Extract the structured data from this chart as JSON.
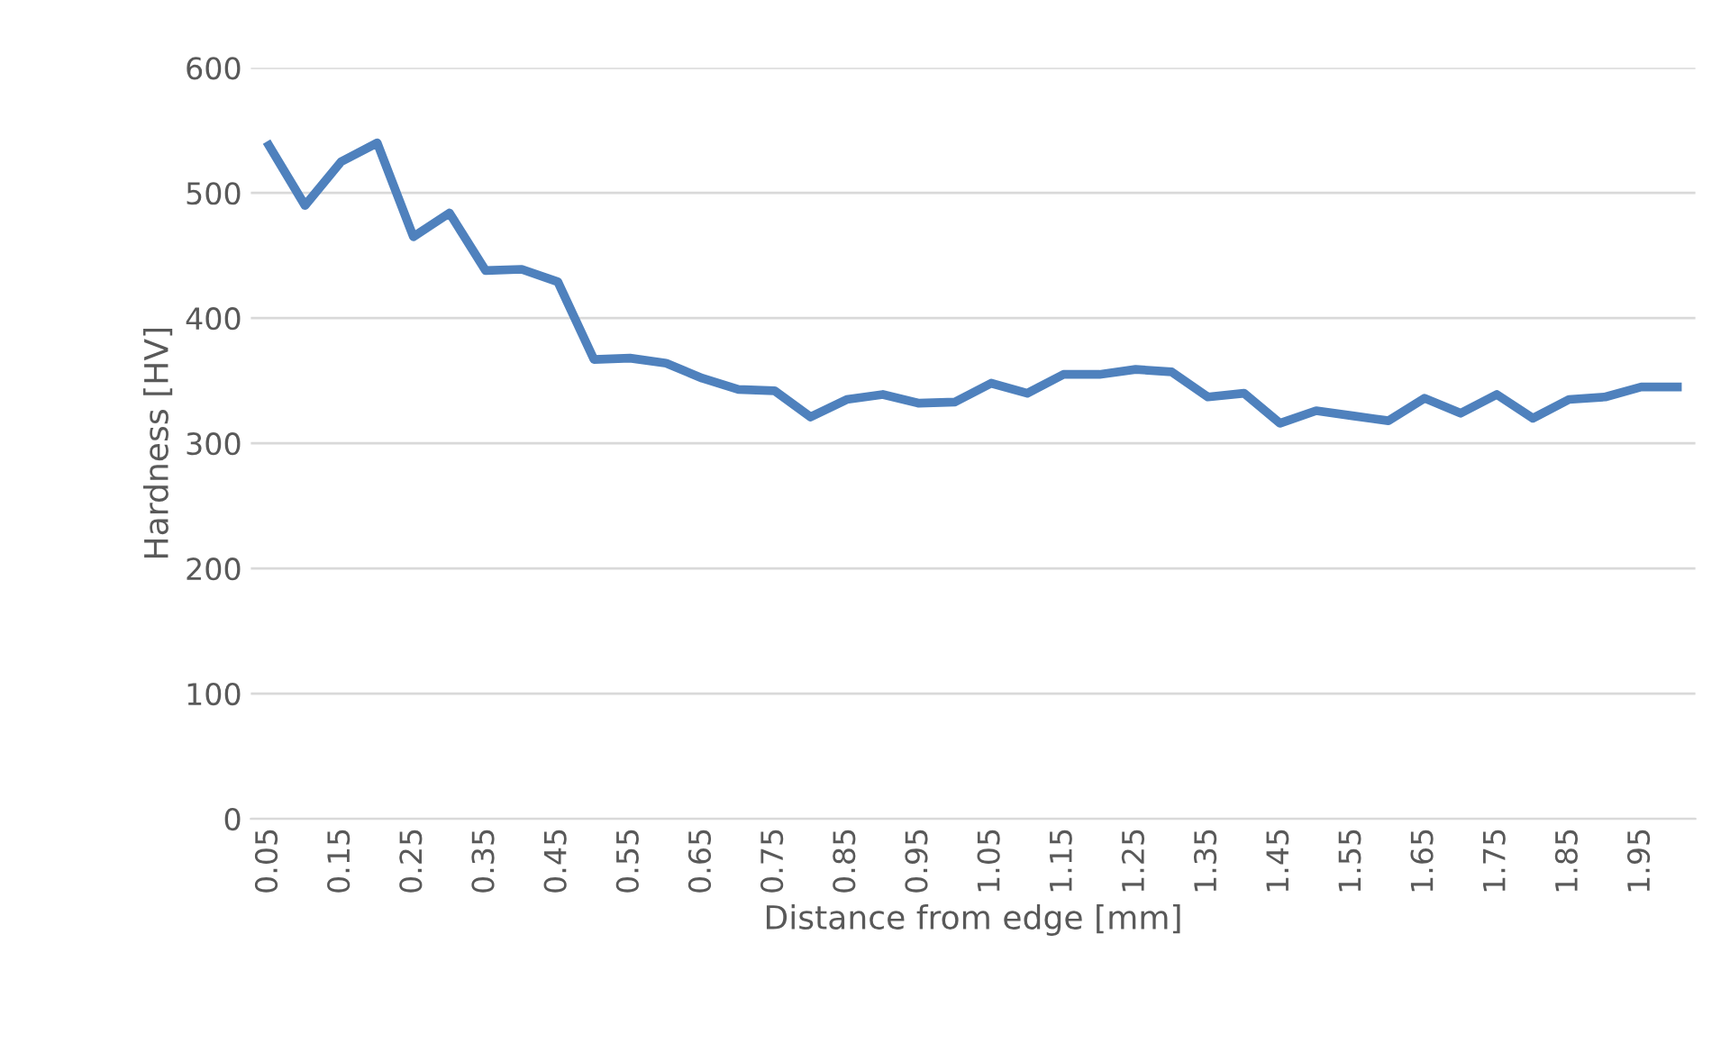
{
  "chart_data": {
    "type": "line",
    "xlabel": "Distance from edge [mm]",
    "ylabel": "Hardness [HV]",
    "categories": [
      "0.05",
      null,
      "0.15",
      null,
      "0.25",
      null,
      "0.35",
      null,
      "0.45",
      null,
      "0.55",
      null,
      "0.65",
      null,
      "0.75",
      null,
      "0.85",
      null,
      "0.95",
      null,
      "1.05",
      null,
      "1.15",
      null,
      "1.25",
      null,
      "1.35",
      null,
      "1.45",
      null,
      "1.55",
      null,
      "1.65",
      null,
      "1.75",
      null,
      "1.85",
      null,
      "1.95",
      null
    ],
    "series": [
      {
        "color": "#4f81bd",
        "values": [
          538,
          490,
          525,
          540,
          465,
          484,
          438,
          439,
          429,
          367,
          368,
          364,
          352,
          343,
          342,
          321,
          335,
          339,
          332,
          333,
          348,
          340,
          355,
          355,
          359,
          357,
          337,
          340,
          316,
          326,
          322,
          318,
          336,
          324,
          339,
          320,
          335,
          337,
          345,
          345
        ]
      }
    ],
    "ylim": [
      0,
      600
    ],
    "yticks": [
      0,
      100,
      200,
      300,
      400,
      500,
      600
    ],
    "grid": "y",
    "marker": "none",
    "line_style": "solid"
  }
}
